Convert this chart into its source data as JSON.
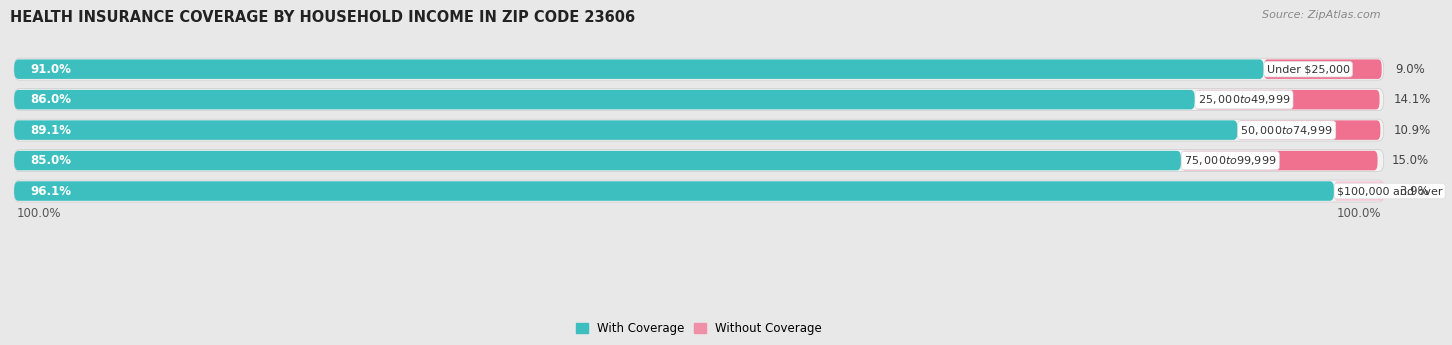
{
  "title": "HEALTH INSURANCE COVERAGE BY HOUSEHOLD INCOME IN ZIP CODE 23606",
  "source": "Source: ZipAtlas.com",
  "categories": [
    "Under $25,000",
    "$25,000 to $49,999",
    "$50,000 to $74,999",
    "$75,000 to $99,999",
    "$100,000 and over"
  ],
  "with_coverage": [
    91.0,
    86.0,
    89.1,
    85.0,
    96.1
  ],
  "without_coverage": [
    9.0,
    14.1,
    10.9,
    15.0,
    3.9
  ],
  "color_with": "#3DBFBF",
  "color_without_1": "#F07090",
  "color_without_2": "#F07090",
  "color_without_3": "#F07090",
  "color_without_4": "#F07090",
  "color_without_5": "#F8C0D0",
  "bg_color": "#e8e8e8",
  "bar_bg": "#f5f5f5",
  "title_fontsize": 10.5,
  "source_fontsize": 8,
  "label_fontsize": 8.5,
  "category_fontsize": 8,
  "legend_fontsize": 8.5,
  "pink_colors": [
    "#F07090",
    "#F07090",
    "#F07090",
    "#F07090",
    "#F8C8D8"
  ]
}
